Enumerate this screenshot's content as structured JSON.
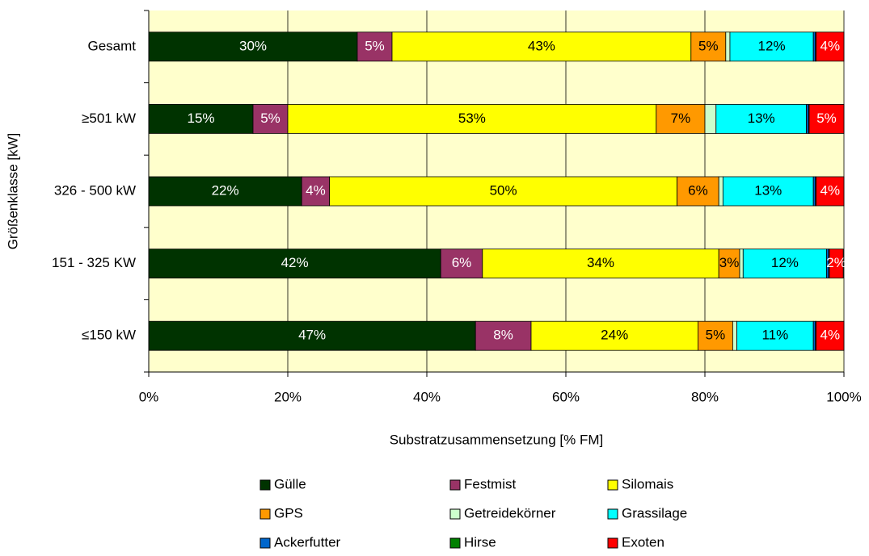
{
  "chart_data": {
    "type": "stacked-bar-horizontal",
    "xlabel": "Substratzusammensetzung [% FM]",
    "ylabel": "Größenklasse [kW]",
    "categories": [
      "Gesamt",
      "≥501 kW",
      "326 - 500 kW",
      "151 - 325 KW",
      "≤150 kW"
    ],
    "series": [
      {
        "name": "Gülle",
        "color": "#003300",
        "values": [
          30,
          15,
          22,
          42,
          47
        ],
        "value_labels": [
          "30%",
          "15%",
          "22%",
          "42%",
          "47%"
        ]
      },
      {
        "name": "Festmist",
        "color": "#993366",
        "values": [
          5,
          5,
          4,
          6,
          8
        ],
        "value_labels": [
          "5%",
          "5%",
          "4%",
          "6%",
          "8%"
        ]
      },
      {
        "name": "Silomais",
        "color": "#ffff00",
        "values": [
          43,
          53,
          50,
          34,
          24
        ],
        "value_labels": [
          "43%",
          "53%",
          "50%",
          "34%",
          "24%"
        ]
      },
      {
        "name": "GPS",
        "color": "#ff9900",
        "values": [
          5,
          7,
          6,
          3,
          5
        ],
        "value_labels": [
          "5%",
          "7%",
          "6%",
          "3%",
          "5%"
        ]
      },
      {
        "name": "Getreidekörner",
        "color": "#ccffcc",
        "values": [
          0.6,
          1.6,
          0.6,
          0.5,
          0.6
        ],
        "value_labels": [
          null,
          null,
          null,
          null,
          null
        ]
      },
      {
        "name": "Grassilage",
        "color": "#00ffff",
        "values": [
          12,
          13,
          13,
          12,
          11
        ],
        "value_labels": [
          "12%",
          "13%",
          "13%",
          "12%",
          "11%"
        ]
      },
      {
        "name": "Ackerfutter",
        "color": "#0066cc",
        "values": [
          0.3,
          0.3,
          0.3,
          0.3,
          0.3
        ],
        "value_labels": [
          null,
          null,
          null,
          null,
          null
        ]
      },
      {
        "name": "Hirse",
        "color": "#008000",
        "values": [
          0.1,
          0.1,
          0.1,
          0.1,
          0.1
        ],
        "value_labels": [
          null,
          null,
          null,
          null,
          null
        ]
      },
      {
        "name": "Exoten",
        "color": "#ff0000",
        "values": [
          4,
          5,
          4,
          2,
          4
        ],
        "value_labels": [
          "4%",
          "5%",
          "4%",
          "2%",
          "4%"
        ]
      }
    ],
    "xlim": [
      0,
      100
    ],
    "xticks": [
      {
        "value": 0,
        "label": "0%"
      },
      {
        "value": 20,
        "label": "20%"
      },
      {
        "value": 40,
        "label": "40%"
      },
      {
        "value": 60,
        "label": "60%"
      },
      {
        "value": 80,
        "label": "80%"
      },
      {
        "value": 100,
        "label": "100%"
      }
    ],
    "grid": true,
    "plot_background": "#ffffcc",
    "legend": "bottom"
  }
}
